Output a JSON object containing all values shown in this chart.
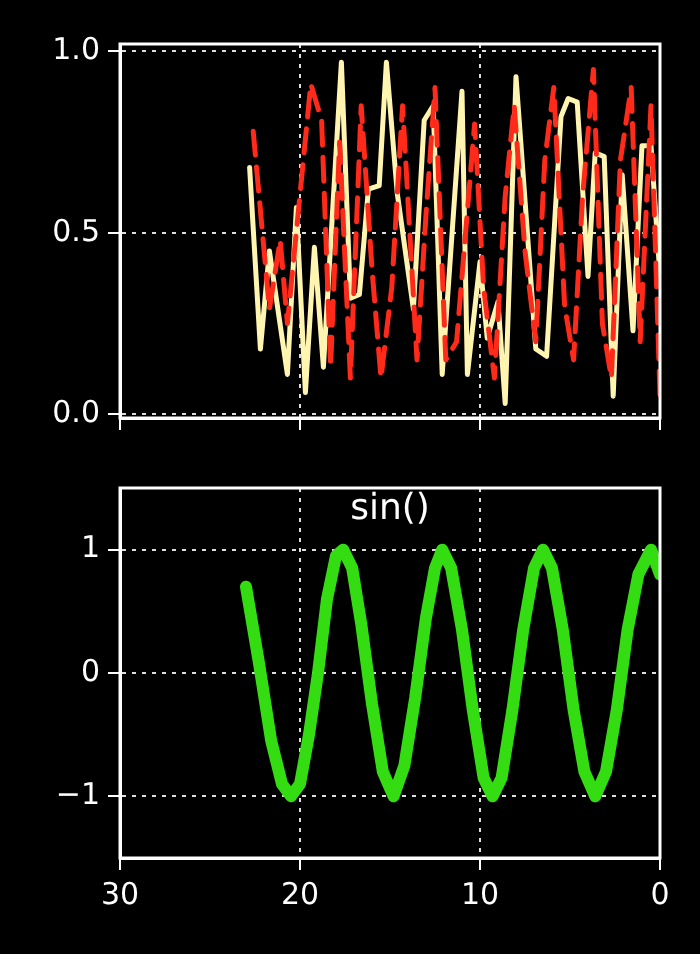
{
  "chart_data": [
    {
      "type": "line",
      "xlim": [
        30,
        0
      ],
      "xticks": [
        30,
        20,
        10,
        0
      ],
      "ylim": [
        -0.01,
        1.02
      ],
      "yticks": [
        {
          "value": 0,
          "label": "0.0"
        },
        {
          "value": 0.5,
          "label": "0.5"
        },
        {
          "value": 1,
          "label": "1.0"
        }
      ],
      "tick_labels": "y",
      "grid": true,
      "marker": "none",
      "series": [
        {
          "color": "#ff2a1a",
          "line_style": "dashed",
          "x": [
            22.6,
            21.7,
            21.1,
            20.7,
            19.4,
            18.8,
            18.3,
            17.8,
            17.2,
            16.6,
            16.0,
            15.5,
            14.9,
            14.3,
            13.5,
            13.0,
            12.5,
            11.9,
            11.3,
            10.8,
            10.3,
            9.8,
            9.2,
            8.6,
            8.1,
            7.5,
            6.9,
            6.4,
            5.9,
            5.3,
            4.8,
            4.3,
            3.7,
            3.2,
            2.7,
            2.2,
            1.6,
            1.1,
            0.5,
            0
          ],
          "values": [
            0.78,
            0.29,
            0.48,
            0.25,
            0.91,
            0.81,
            0.13,
            0.75,
            0.1,
            0.85,
            0.4,
            0.1,
            0.35,
            0.85,
            0.15,
            0.55,
            0.9,
            0.15,
            0.2,
            0.5,
            0.8,
            0.35,
            0.1,
            0.6,
            0.85,
            0.45,
            0.2,
            0.7,
            0.9,
            0.3,
            0.15,
            0.6,
            0.95,
            0.25,
            0.1,
            0.7,
            0.9,
            0.2,
            0.85,
            0.05
          ]
        },
        {
          "color": "#fff5b0",
          "line_style": "solid",
          "x": [
            22.8,
            22.2,
            21.7,
            20.7,
            20.2,
            19.7,
            19.2,
            18.7,
            17.7,
            17.2,
            16.7,
            16.2,
            15.6,
            15.2,
            14.6,
            13.7,
            13.1,
            12.6,
            12.1,
            11.0,
            10.7,
            10.0,
            9.6,
            9.0,
            8.6,
            8.0,
            7.5,
            6.9,
            6.3,
            5.5,
            5.1,
            4.6,
            4.0,
            3.6,
            3.1,
            2.6,
            2.1,
            1.5,
            1.0,
            0.5,
            0
          ],
          "values": [
            0.68,
            0.18,
            0.45,
            0.11,
            0.57,
            0.06,
            0.46,
            0.13,
            0.97,
            0.32,
            0.33,
            0.62,
            0.63,
            0.97,
            0.61,
            0.29,
            0.81,
            0.85,
            0.11,
            0.89,
            0.11,
            0.42,
            0.21,
            0.31,
            0.03,
            0.93,
            0.59,
            0.18,
            0.16,
            0.82,
            0.87,
            0.86,
            0.38,
            0.72,
            0.71,
            0.05,
            0.66,
            0.23,
            0.74,
            0.74,
            0.38
          ]
        }
      ]
    },
    {
      "type": "line",
      "title": "sin()",
      "xlim": [
        30,
        0
      ],
      "xticks": [
        30,
        20,
        10,
        0
      ],
      "ylim": [
        -1.5,
        1.5
      ],
      "yticks": [
        {
          "value": -1,
          "label": "−1"
        },
        0,
        1
      ],
      "grid": true,
      "marker": "none",
      "series": [
        {
          "color": "#33dd11",
          "line_style": "solid",
          "x": [
            23.0,
            22.3,
            21.6,
            21.0,
            20.5,
            20.0,
            19.5,
            19.0,
            18.5,
            18.0,
            17.6,
            17.1,
            16.6,
            16.0,
            15.4,
            14.8,
            14.2,
            13.6,
            13.0,
            12.5,
            12.1,
            11.6,
            11.0,
            10.4,
            9.8,
            9.3,
            8.8,
            8.2,
            7.6,
            7.0,
            6.5,
            6.0,
            5.4,
            4.8,
            4.2,
            3.6,
            3.0,
            2.4,
            1.8,
            1.2,
            0.5,
            0
          ],
          "values": [
            0.7,
            0.1,
            -0.55,
            -0.9,
            -1.0,
            -0.9,
            -0.5,
            0.0,
            0.6,
            0.95,
            1.0,
            0.85,
            0.4,
            -0.25,
            -0.8,
            -1.0,
            -0.75,
            -0.2,
            0.45,
            0.85,
            1.0,
            0.85,
            0.35,
            -0.3,
            -0.85,
            -1.0,
            -0.85,
            -0.3,
            0.35,
            0.85,
            1.0,
            0.85,
            0.35,
            -0.3,
            -0.8,
            -1.0,
            -0.8,
            -0.3,
            0.35,
            0.8,
            1.0,
            0.8
          ]
        }
      ]
    }
  ]
}
